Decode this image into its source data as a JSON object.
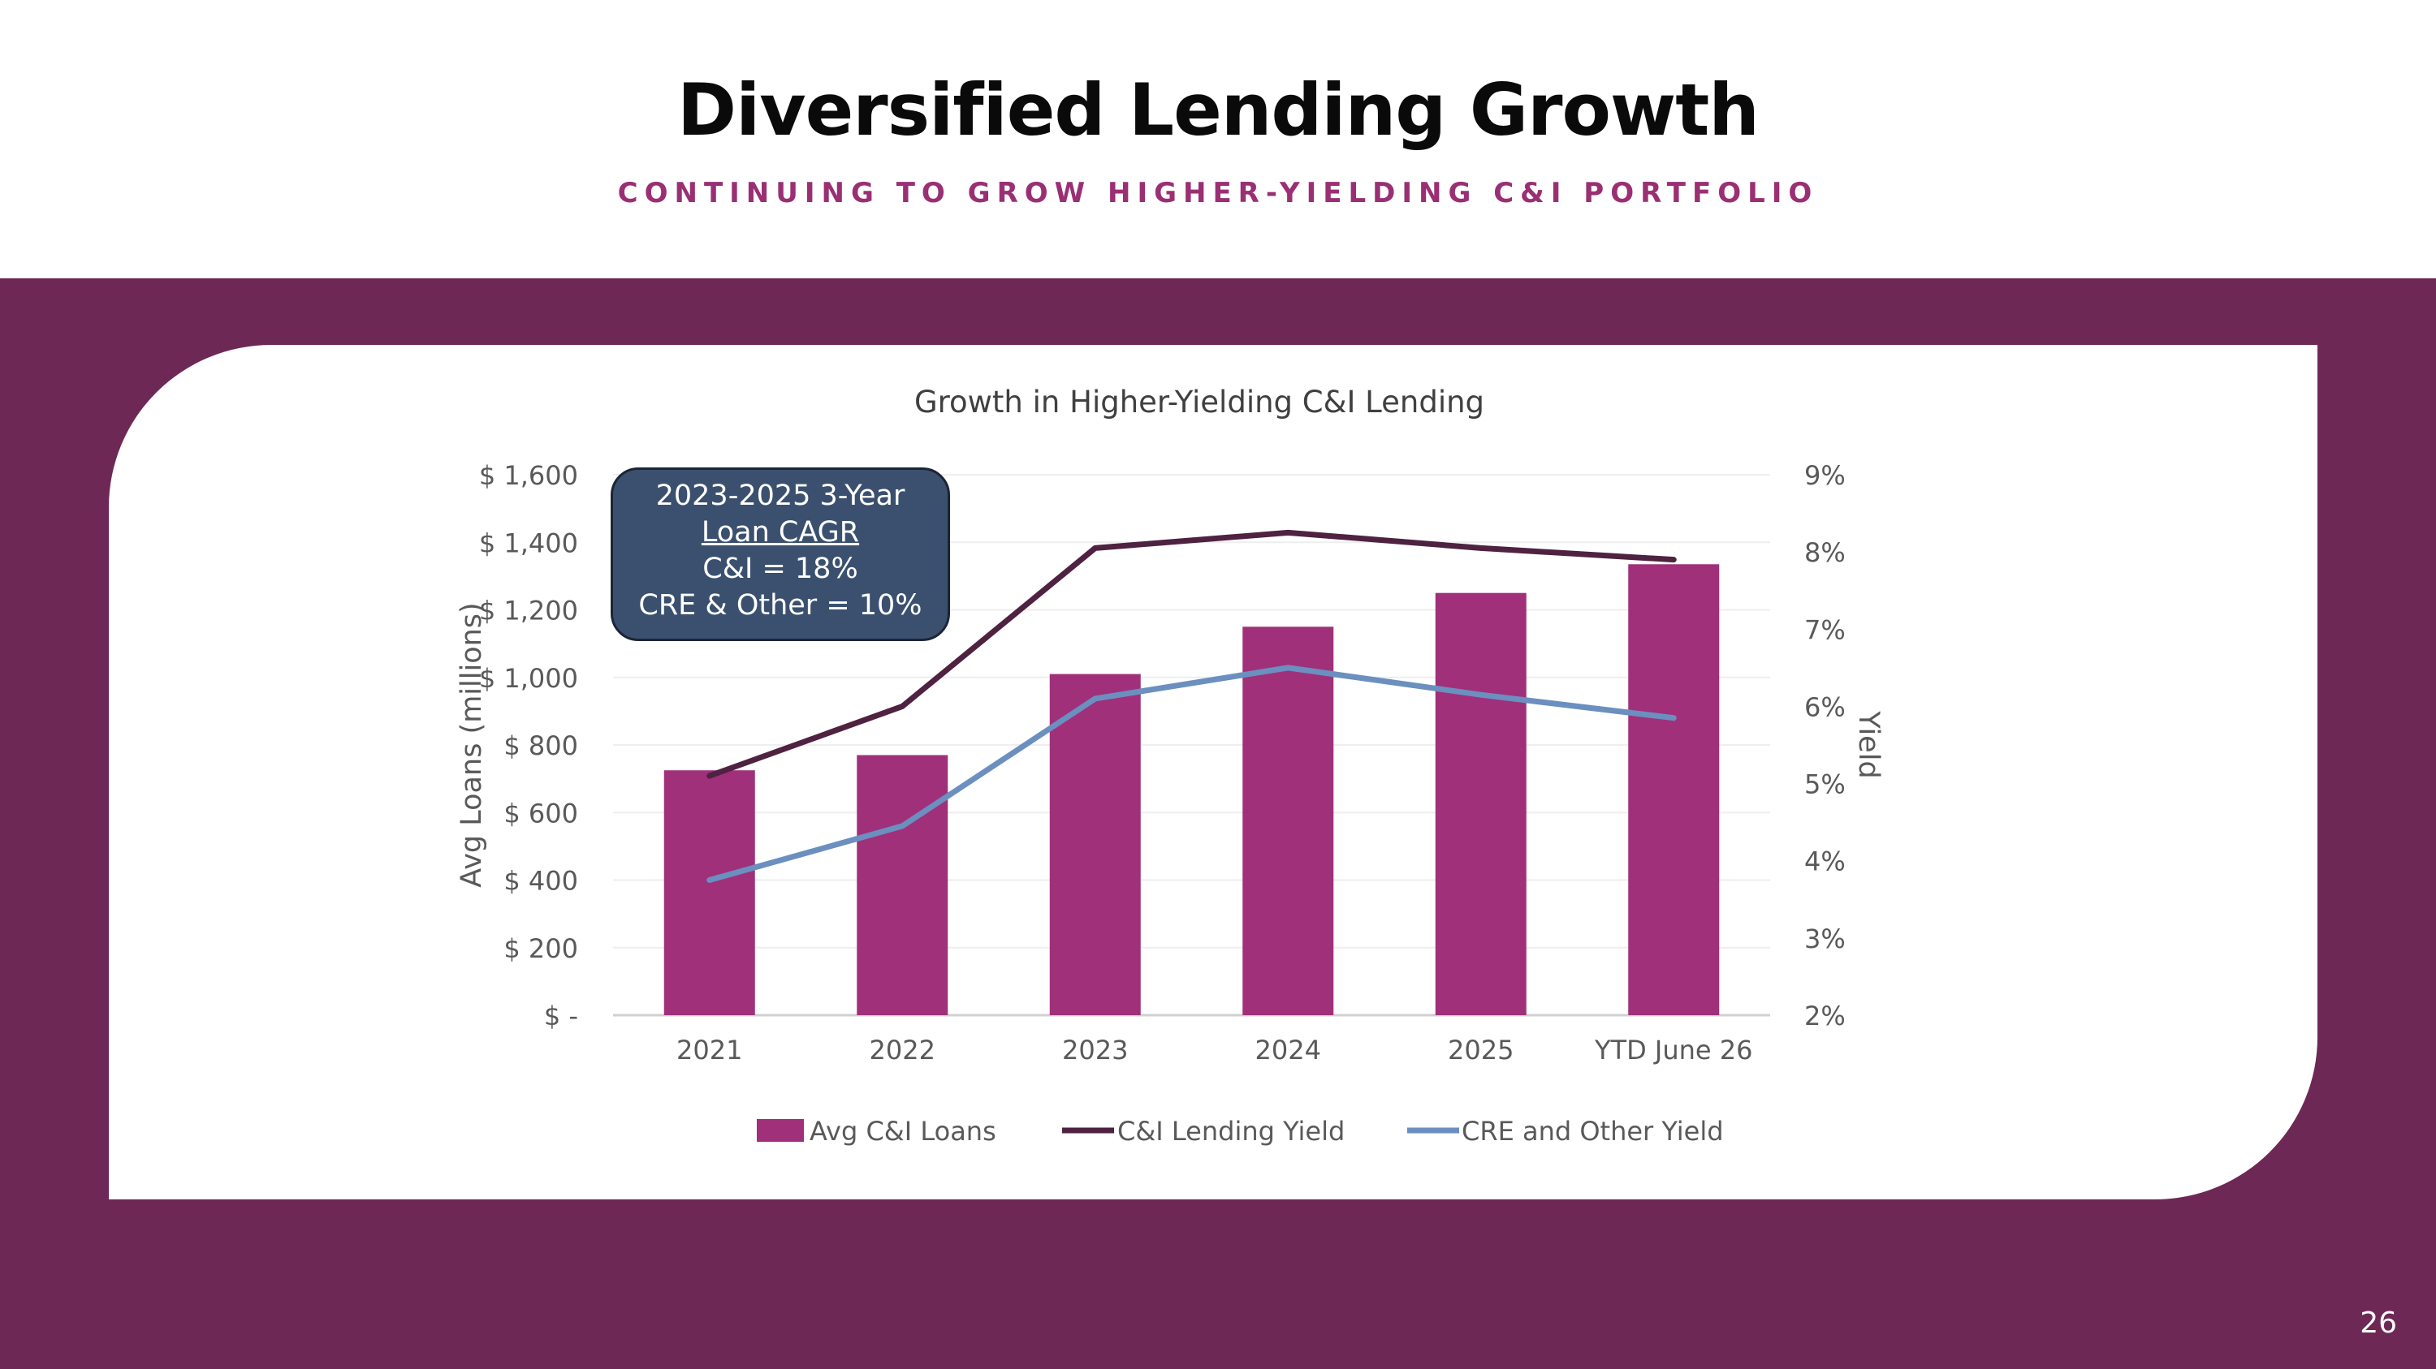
{
  "slide": {
    "title": "Diversified Lending Growth",
    "subtitle": "CONTINUING TO GROW HIGHER-YIELDING C&I PORTFOLIO",
    "page_number": "26"
  },
  "callout": {
    "line1": "2023-2025 3-Year",
    "line2": "Loan CAGR",
    "line3": "C&I = 18%",
    "line4": "CRE & Other = 10%"
  },
  "colors": {
    "band": "#6e2855",
    "bars": "#a0307a",
    "ci_yield": "#4e2240",
    "cre_yield": "#6b8fbf",
    "callout_bg": "#3b506e"
  },
  "chart_data": {
    "type": "bar",
    "title": "Growth in Higher-Yielding C&I Lending",
    "categories": [
      "2021",
      "2022",
      "2023",
      "2024",
      "2025",
      "YTD June 26"
    ],
    "series": [
      {
        "name": "Avg C&I Loans",
        "type": "bar",
        "axis": "left",
        "values": [
          725,
          770,
          1010,
          1150,
          1250,
          1335
        ]
      },
      {
        "name": "C&I Lending Yield",
        "type": "line",
        "axis": "right",
        "values": [
          5.1,
          6.0,
          8.05,
          8.25,
          8.05,
          7.9
        ]
      },
      {
        "name": "CRE and Other Yield",
        "type": "line",
        "axis": "right",
        "values": [
          3.75,
          4.45,
          6.1,
          6.5,
          6.15,
          5.85
        ]
      }
    ],
    "y_left": {
      "label": "Avg Loans (millions)",
      "ylim": [
        0,
        1600
      ],
      "tick_labels": [
        "$ -",
        "$ 200",
        "$ 400",
        "$ 600",
        "$ 800",
        "$ 1,000",
        "$ 1,200",
        "$ 1,400",
        "$ 1,600"
      ]
    },
    "y_right": {
      "label": "Yield",
      "ylim": [
        2,
        9
      ],
      "tick_labels": [
        "2%",
        "3%",
        "4%",
        "5%",
        "6%",
        "7%",
        "8%",
        "9%"
      ]
    },
    "grid": true,
    "legend_position": "bottom"
  }
}
